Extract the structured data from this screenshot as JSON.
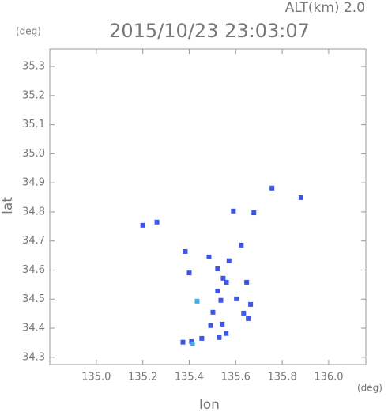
{
  "chart_data": {
    "type": "scatter",
    "title": "2015/10/23 23:03:07",
    "subtitle": "ALT(km) 2.0",
    "x_label": "lon",
    "y_label": "lat",
    "x_unit": "(deg)",
    "y_unit": "(deg)",
    "xlim": [
      134.8,
      136.16
    ],
    "ylim": [
      34.275,
      35.36
    ],
    "xticks": [
      {
        "value": 135,
        "label": "135.0"
      },
      135.2,
      135.4,
      135.6,
      135.8,
      {
        "value": 136,
        "label": "136.0"
      }
    ],
    "yticks": [
      34.3,
      34.4,
      34.5,
      34.6,
      34.7,
      34.8,
      34.9,
      {
        "value": 35,
        "label": "35.0"
      },
      35.1,
      35.2,
      35.3
    ],
    "series": [
      {
        "color": "#3d55e8",
        "x": [
          135.756,
          135.881,
          135.2,
          135.261,
          135.59,
          135.678,
          135.624,
          135.383,
          135.485,
          135.571,
          135.522,
          135.546,
          135.56,
          135.647,
          135.4,
          135.522,
          135.536,
          135.603,
          135.664,
          135.634,
          135.654,
          135.502,
          135.542,
          135.492,
          135.529,
          135.559,
          135.41,
          135.373,
          135.454
        ],
        "y": [
          34.882,
          34.849,
          34.754,
          34.765,
          34.803,
          34.797,
          34.686,
          34.664,
          34.645,
          34.632,
          34.604,
          34.572,
          34.558,
          34.558,
          34.59,
          34.528,
          34.496,
          34.501,
          34.482,
          34.452,
          34.433,
          34.455,
          34.414,
          34.409,
          34.368,
          34.382,
          34.354,
          34.352,
          34.365
        ]
      },
      {
        "color": "#45a8e8",
        "x": [
          135.434,
          135.414
        ],
        "y": [
          34.493,
          34.346
        ]
      }
    ]
  }
}
